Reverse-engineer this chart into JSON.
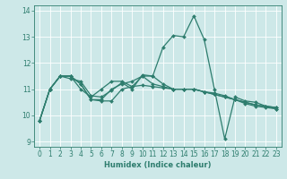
{
  "xlabel": "Humidex (Indice chaleur)",
  "bg_color": "#cde8e8",
  "line_color": "#2e7d6e",
  "grid_color": "#ffffff",
  "xlim_min": -0.5,
  "xlim_max": 23.5,
  "ylim_min": 8.8,
  "ylim_max": 14.2,
  "yticks": [
    9,
    10,
    11,
    12,
    13,
    14
  ],
  "xticks": [
    0,
    1,
    2,
    3,
    4,
    5,
    6,
    7,
    8,
    9,
    10,
    11,
    12,
    13,
    14,
    15,
    16,
    17,
    18,
    19,
    20,
    21,
    22,
    23
  ],
  "series": [
    [
      9.8,
      11.0,
      11.5,
      11.5,
      11.2,
      10.6,
      10.6,
      11.0,
      11.2,
      11.3,
      11.5,
      11.2,
      11.1,
      11.0,
      11.0,
      11.0,
      10.9,
      10.8,
      10.7,
      10.6,
      10.5,
      10.4,
      10.35,
      10.3
    ],
    [
      9.8,
      11.0,
      11.5,
      11.5,
      11.0,
      10.7,
      11.0,
      11.3,
      11.3,
      11.1,
      11.5,
      11.5,
      11.2,
      11.0,
      11.0,
      11.0,
      10.9,
      10.8,
      10.7,
      10.6,
      10.5,
      10.4,
      10.35,
      10.3
    ],
    [
      9.8,
      11.0,
      11.5,
      11.4,
      11.3,
      10.75,
      10.7,
      10.95,
      11.25,
      11.0,
      11.55,
      11.5,
      12.6,
      13.05,
      13.0,
      13.8,
      12.9,
      11.0,
      9.1,
      10.7,
      10.55,
      10.5,
      10.35,
      10.25
    ],
    [
      9.8,
      11.0,
      11.5,
      11.5,
      11.2,
      10.6,
      10.55,
      10.55,
      11.0,
      11.1,
      11.15,
      11.1,
      11.05,
      11.0,
      11.0,
      11.0,
      10.9,
      10.85,
      10.75,
      10.6,
      10.45,
      10.35,
      10.3,
      10.25
    ]
  ],
  "tick_fontsize": 5.5,
  "xlabel_fontsize": 6.0,
  "marker_size": 2.0,
  "line_width": 0.9
}
